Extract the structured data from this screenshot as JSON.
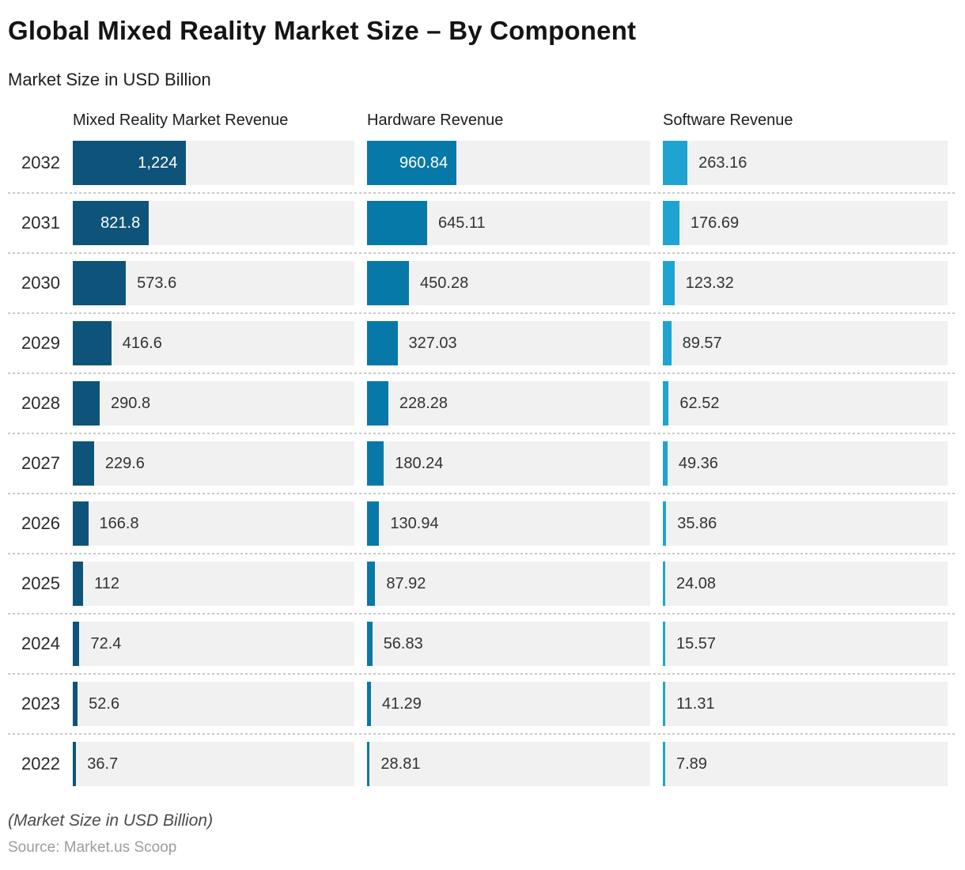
{
  "title": "Global Mixed Reality Market Size – By Component",
  "subtitle": "Market Size in USD Billion",
  "footer": {
    "note": "(Market Size in USD Billion)",
    "source": "Source: Market.us Scoop"
  },
  "chart_data": {
    "type": "bar",
    "orientation": "horizontal",
    "title": "Global Mixed Reality Market Size – By Component",
    "value_unit": "USD Billion",
    "categories": [
      "2032",
      "2031",
      "2030",
      "2029",
      "2028",
      "2027",
      "2026",
      "2025",
      "2024",
      "2023",
      "2022"
    ],
    "xlim": [
      0,
      3040
    ],
    "grid": false,
    "legend_position": "column-headers",
    "track_color": "#F1F1F2",
    "label_inside_threshold": 700,
    "series": [
      {
        "name": "Mixed Reality Market Revenue",
        "color": "#0E547A",
        "values": [
          1224,
          821.8,
          573.6,
          416.6,
          290.8,
          229.6,
          166.8,
          112,
          72.4,
          52.6,
          36.7
        ],
        "labels": [
          "1,224",
          "821.8",
          "573.6",
          "416.6",
          "290.8",
          "229.6",
          "166.8",
          "112",
          "72.4",
          "52.6",
          "36.7"
        ]
      },
      {
        "name": "Hardware Revenue",
        "color": "#0779A8",
        "values": [
          960.84,
          645.11,
          450.28,
          327.03,
          228.28,
          180.24,
          130.94,
          87.92,
          56.83,
          41.29,
          28.81
        ],
        "labels": [
          "960.84",
          "645.11",
          "450.28",
          "327.03",
          "228.28",
          "180.24",
          "130.94",
          "87.92",
          "56.83",
          "41.29",
          "28.81"
        ]
      },
      {
        "name": "Software Revenue",
        "color": "#1EA3D2",
        "values": [
          263.16,
          176.69,
          123.32,
          89.57,
          62.52,
          49.36,
          35.86,
          24.08,
          15.57,
          11.31,
          7.89
        ],
        "labels": [
          "263.16",
          "176.69",
          "123.32",
          "89.57",
          "62.52",
          "49.36",
          "35.86",
          "24.08",
          "15.57",
          "11.31",
          "7.89"
        ]
      }
    ]
  }
}
